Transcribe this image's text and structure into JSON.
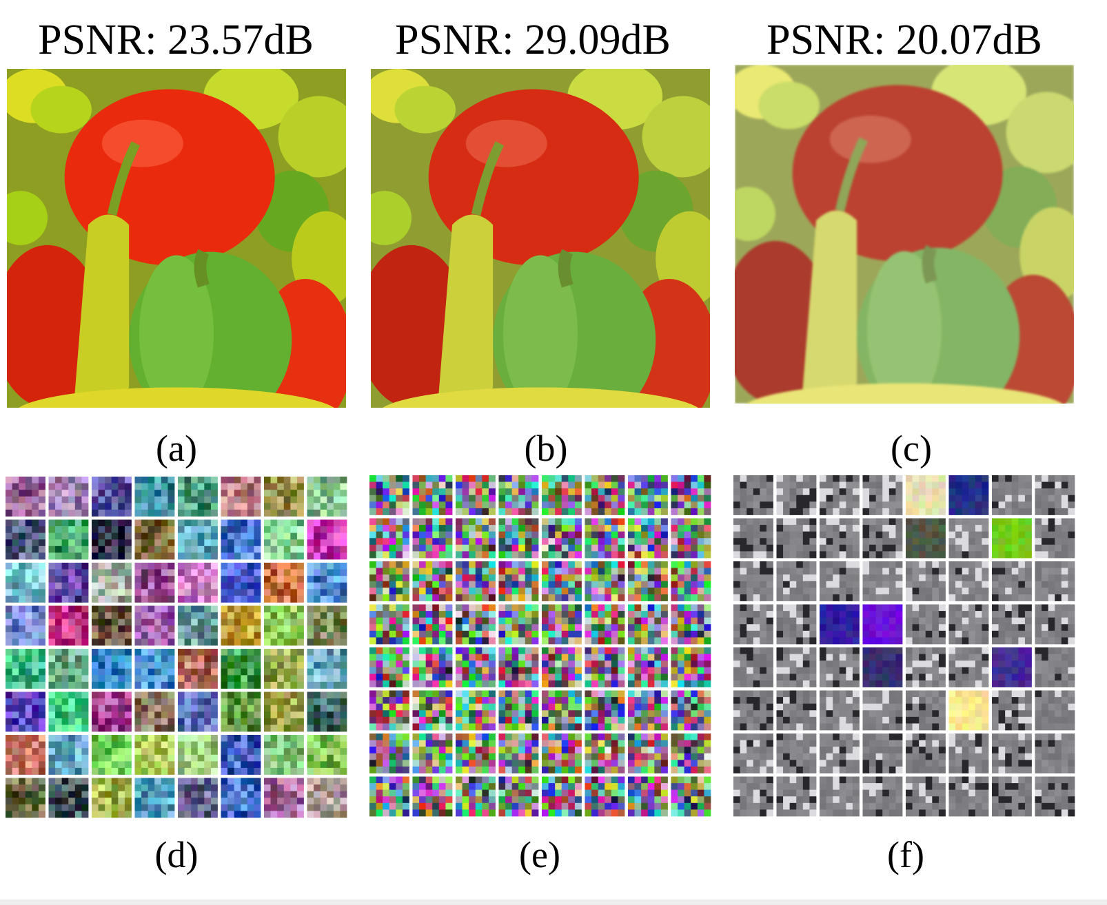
{
  "figure": {
    "panels": [
      {
        "title": "PSNR: 23.57dB",
        "label": "(a)",
        "style": "vivid"
      },
      {
        "title": "PSNR: 29.09dB",
        "label": "(b)",
        "style": "sharp"
      },
      {
        "title": "PSNR: 20.07dB",
        "label": "(c)",
        "style": "washed"
      }
    ],
    "dictionaries": [
      {
        "label": "(d)",
        "style": "natural-patches"
      },
      {
        "label": "(e)",
        "style": "noise-patches"
      },
      {
        "label": "(f)",
        "style": "gray-edges"
      }
    ],
    "grid": {
      "rows": 8,
      "cols": 8
    }
  }
}
